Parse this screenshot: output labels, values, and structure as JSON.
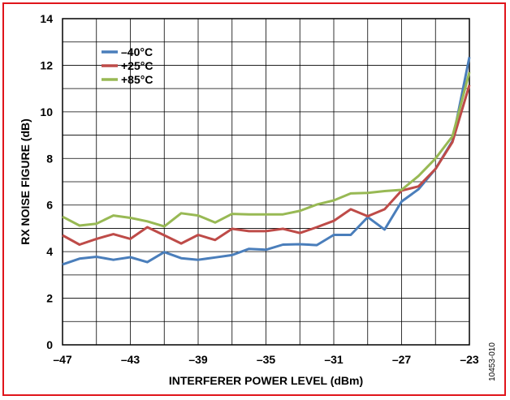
{
  "chart_data": {
    "type": "line",
    "title": "",
    "xlabel": "INTERFERER POWER LEVEL (dBm)",
    "ylabel": "RX NOISE FIGURE (dB)",
    "xlim": [
      -47,
      -23
    ],
    "ylim": [
      0,
      14
    ],
    "x_ticks": [
      "–47",
      "–43",
      "–39",
      "–35",
      "–31",
      "–27",
      "–23"
    ],
    "x_tick_values": [
      -47,
      -43,
      -39,
      -35,
      -31,
      -27,
      -23
    ],
    "y_ticks": [
      "0",
      "2",
      "4",
      "6",
      "8",
      "10",
      "12",
      "14"
    ],
    "y_tick_values": [
      0,
      2,
      4,
      6,
      8,
      10,
      12,
      14
    ],
    "grid": true,
    "legend_position": "top-left",
    "x": [
      -47,
      -46,
      -45,
      -44,
      -43,
      -42,
      -41,
      -40,
      -39,
      -38,
      -37,
      -36,
      -35,
      -34,
      -33,
      -32,
      -31,
      -30,
      -29,
      -28,
      -27,
      -26,
      -25,
      -24,
      -23
    ],
    "series": [
      {
        "name": "–40°C",
        "color": "#4a7ebb",
        "values": [
          3.45,
          3.7,
          3.78,
          3.65,
          3.76,
          3.55,
          3.98,
          3.72,
          3.65,
          3.75,
          3.85,
          4.12,
          4.08,
          4.3,
          4.32,
          4.28,
          4.72,
          4.72,
          5.48,
          4.95,
          6.15,
          6.68,
          7.55,
          8.75,
          12.35
        ]
      },
      {
        "name": "+25°C",
        "color": "#be4b48",
        "values": [
          4.7,
          4.3,
          4.55,
          4.75,
          4.55,
          5.05,
          4.7,
          4.35,
          4.72,
          4.5,
          4.98,
          4.88,
          4.88,
          4.98,
          4.8,
          5.05,
          5.32,
          5.82,
          5.52,
          5.82,
          6.62,
          6.8,
          7.55,
          8.7,
          11.15
        ]
      },
      {
        "name": "+85°C",
        "color": "#98b954",
        "values": [
          5.5,
          5.12,
          5.2,
          5.55,
          5.45,
          5.3,
          5.08,
          5.65,
          5.55,
          5.25,
          5.62,
          5.6,
          5.6,
          5.6,
          5.75,
          6.02,
          6.2,
          6.5,
          6.52,
          6.6,
          6.65,
          7.25,
          8.0,
          8.95,
          11.7
        ]
      }
    ]
  },
  "figure_id": "10453-010"
}
